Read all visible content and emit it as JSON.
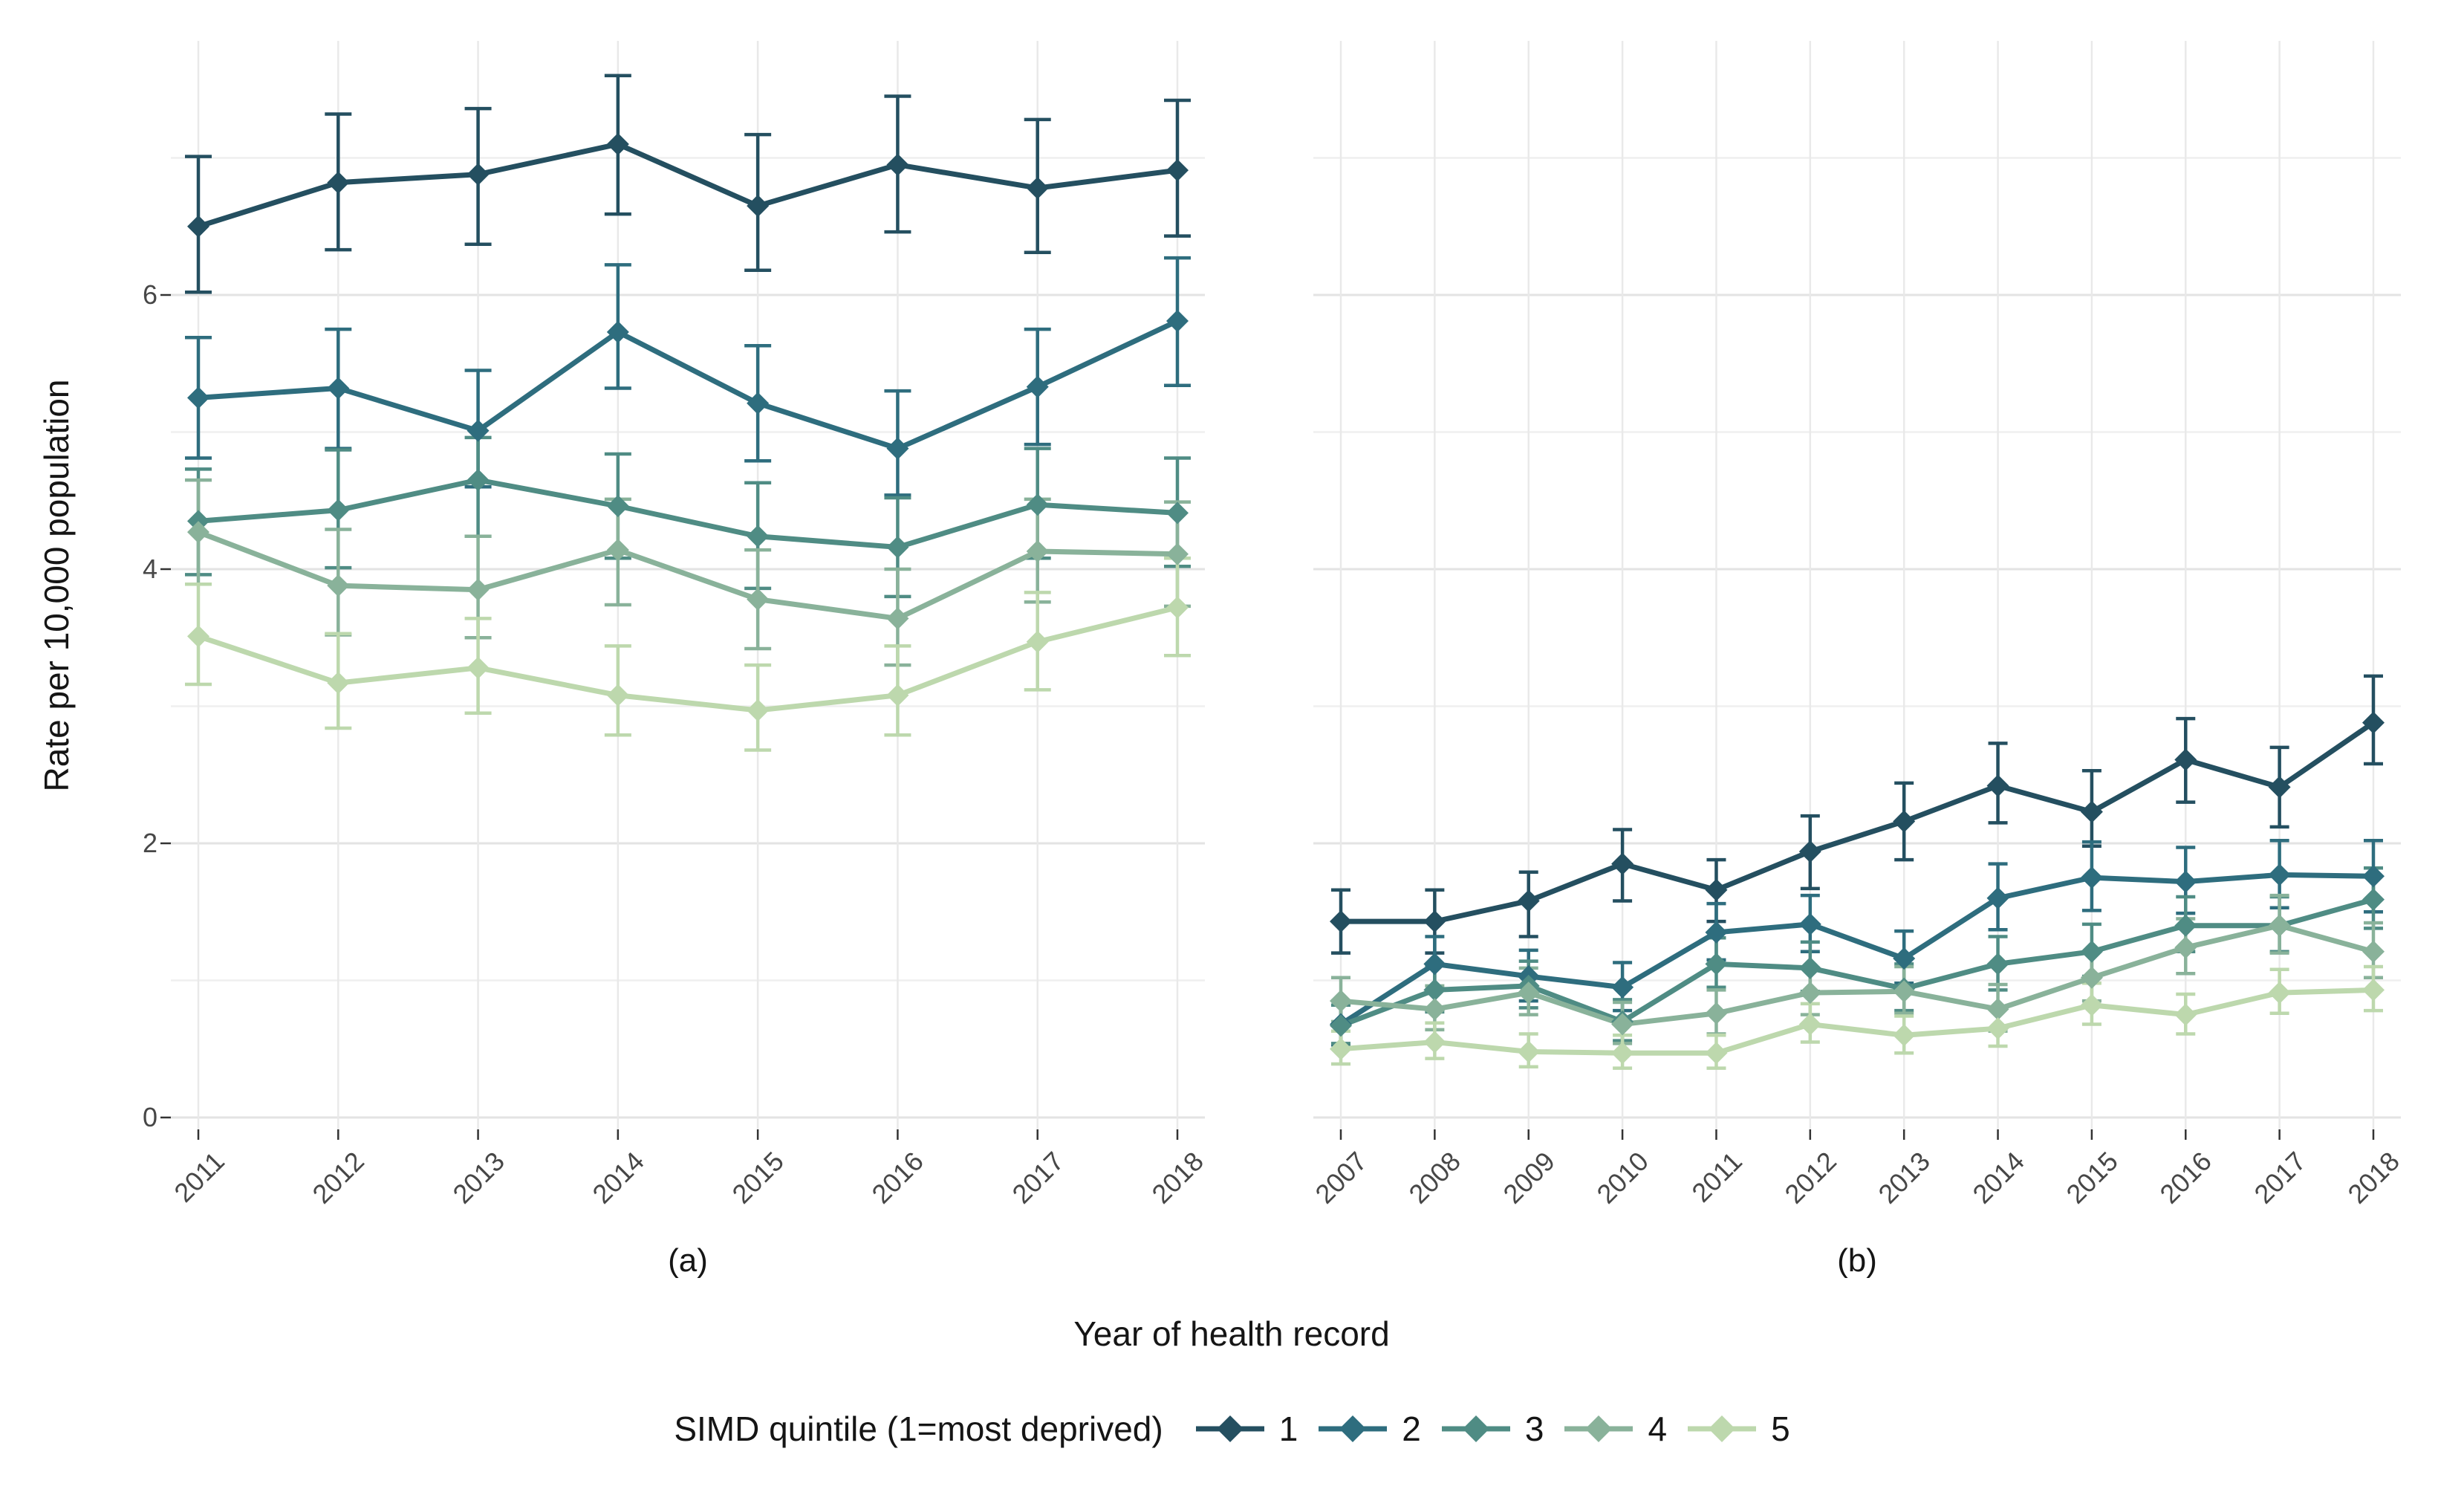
{
  "figure": {
    "y_axis_title": "Rate per 10,000 population",
    "x_axis_title": "Year of health record",
    "legend_title": "SIMD quintile (1=most deprived)",
    "legend_items": [
      {
        "label": "1",
        "color": "#244f60"
      },
      {
        "label": "2",
        "color": "#2e6d7e"
      },
      {
        "label": "3",
        "color": "#4f8c84"
      },
      {
        "label": "4",
        "color": "#89b29a"
      },
      {
        "label": "5",
        "color": "#bdd8ad"
      }
    ],
    "colors": {
      "grid_major": "#e3e3e3",
      "grid_minor": "#efefef",
      "grid_vertical": "#e9e9e9",
      "tick_mark": "#333333",
      "tick_text": "#474747",
      "background": "#ffffff"
    }
  },
  "chart_data": [
    {
      "type": "line",
      "title": "(a)",
      "xlabel": "Year of health record",
      "ylabel": "Rate per 10,000 population",
      "ylim": [
        0,
        7.95
      ],
      "y_major_ticks": [
        0,
        2,
        4,
        6
      ],
      "y_minor_ticks": [
        1,
        3,
        5,
        7
      ],
      "grid": true,
      "legend_position": "bottom",
      "marker": "diamond",
      "error_bars": true,
      "categories": [
        "2011",
        "2012",
        "2013",
        "2014",
        "2015",
        "2016",
        "2017",
        "2018"
      ],
      "series": [
        {
          "name": "1",
          "color": "#244f60",
          "values": [
            6.5,
            6.82,
            6.88,
            7.1,
            6.65,
            6.95,
            6.78,
            6.91
          ],
          "lo": [
            6.02,
            6.33,
            6.37,
            6.59,
            6.18,
            6.46,
            6.31,
            6.43
          ],
          "hi": [
            7.01,
            7.32,
            7.36,
            7.6,
            7.17,
            7.45,
            7.28,
            7.42
          ]
        },
        {
          "name": "2",
          "color": "#2e6d7e",
          "values": [
            5.25,
            5.32,
            5.01,
            5.73,
            5.21,
            4.88,
            5.33,
            5.81
          ],
          "lo": [
            4.81,
            4.88,
            4.6,
            5.32,
            4.79,
            4.54,
            4.91,
            5.34
          ],
          "hi": [
            5.69,
            5.75,
            5.45,
            6.22,
            5.63,
            5.3,
            5.75,
            6.27
          ]
        },
        {
          "name": "3",
          "color": "#4f8c84",
          "values": [
            4.35,
            4.43,
            4.65,
            4.46,
            4.24,
            4.16,
            4.47,
            4.41
          ],
          "lo": [
            3.96,
            4.01,
            4.24,
            4.08,
            3.86,
            3.8,
            4.08,
            4.02
          ],
          "hi": [
            4.73,
            4.87,
            4.96,
            4.84,
            4.63,
            4.52,
            4.88,
            4.81
          ]
        },
        {
          "name": "4",
          "color": "#89b29a",
          "values": [
            4.27,
            3.88,
            3.85,
            4.14,
            3.78,
            3.64,
            4.13,
            4.11
          ],
          "lo": [
            3.89,
            3.52,
            3.5,
            3.74,
            3.42,
            3.3,
            3.76,
            3.73
          ],
          "hi": [
            4.65,
            4.29,
            4.24,
            4.51,
            4.14,
            4.0,
            4.51,
            4.49
          ]
        },
        {
          "name": "5",
          "color": "#bdd8ad",
          "values": [
            3.51,
            3.17,
            3.28,
            3.08,
            2.97,
            3.08,
            3.47,
            3.72
          ],
          "lo": [
            3.16,
            2.84,
            2.95,
            2.79,
            2.68,
            2.79,
            3.12,
            3.37
          ],
          "hi": [
            3.89,
            3.53,
            3.64,
            3.44,
            3.3,
            3.44,
            3.83,
            4.08
          ]
        }
      ]
    },
    {
      "type": "line",
      "title": "(b)",
      "xlabel": "Year of health record",
      "ylabel": "Rate per 10,000 population",
      "ylim": [
        0,
        7.95
      ],
      "y_major_ticks": [
        0,
        2,
        4,
        6
      ],
      "y_minor_ticks": [
        1,
        3,
        5,
        7
      ],
      "grid": true,
      "legend_position": "bottom",
      "marker": "diamond",
      "error_bars": true,
      "categories": [
        "2007",
        "2008",
        "2009",
        "2010",
        "2011",
        "2012",
        "2013",
        "2014",
        "2015",
        "2016",
        "2017",
        "2018"
      ],
      "series": [
        {
          "name": "1",
          "color": "#244f60",
          "values": [
            1.43,
            1.43,
            1.58,
            1.85,
            1.66,
            1.94,
            2.16,
            2.42,
            2.23,
            2.61,
            2.41,
            2.88
          ],
          "lo": [
            1.2,
            1.2,
            1.32,
            1.58,
            1.43,
            1.67,
            1.88,
            2.15,
            1.98,
            2.3,
            2.12,
            2.58
          ],
          "hi": [
            1.66,
            1.66,
            1.79,
            2.1,
            1.88,
            2.2,
            2.44,
            2.73,
            2.53,
            2.91,
            2.7,
            3.22
          ]
        },
        {
          "name": "2",
          "color": "#2e6d7e",
          "values": [
            0.68,
            1.12,
            1.03,
            0.95,
            1.35,
            1.41,
            1.16,
            1.6,
            1.75,
            1.72,
            1.77,
            1.76
          ],
          "lo": [
            0.53,
            0.93,
            0.85,
            0.78,
            1.15,
            1.21,
            0.98,
            1.37,
            1.51,
            1.49,
            1.53,
            1.5
          ],
          "hi": [
            0.85,
            1.32,
            1.22,
            1.13,
            1.56,
            1.62,
            1.36,
            1.85,
            2.01,
            1.97,
            2.02,
            2.02
          ]
        },
        {
          "name": "3",
          "color": "#4f8c84",
          "values": [
            0.67,
            0.93,
            0.96,
            0.7,
            1.12,
            1.09,
            0.94,
            1.12,
            1.21,
            1.4,
            1.4,
            1.59
          ],
          "lo": [
            0.54,
            0.77,
            0.8,
            0.56,
            0.95,
            0.92,
            0.78,
            0.93,
            1.03,
            1.21,
            1.21,
            1.38
          ],
          "hi": [
            0.82,
            1.11,
            1.14,
            0.86,
            1.31,
            1.28,
            1.12,
            1.32,
            1.41,
            1.61,
            1.61,
            1.82
          ]
        },
        {
          "name": "4",
          "color": "#89b29a",
          "values": [
            0.85,
            0.79,
            0.91,
            0.68,
            0.76,
            0.91,
            0.92,
            0.79,
            1.02,
            1.24,
            1.4,
            1.21
          ],
          "lo": [
            0.7,
            0.64,
            0.75,
            0.54,
            0.61,
            0.75,
            0.76,
            0.63,
            0.85,
            1.05,
            1.2,
            1.02
          ],
          "hi": [
            1.02,
            0.96,
            1.09,
            0.84,
            0.93,
            1.09,
            1.1,
            0.97,
            1.21,
            1.45,
            1.62,
            1.42
          ]
        },
        {
          "name": "5",
          "color": "#bdd8ad",
          "values": [
            0.5,
            0.55,
            0.48,
            0.47,
            0.47,
            0.68,
            0.6,
            0.65,
            0.82,
            0.75,
            0.91,
            0.93
          ],
          "lo": [
            0.39,
            0.43,
            0.37,
            0.36,
            0.36,
            0.55,
            0.47,
            0.52,
            0.68,
            0.61,
            0.76,
            0.78
          ],
          "hi": [
            0.63,
            0.69,
            0.61,
            0.6,
            0.6,
            0.83,
            0.74,
            0.8,
            0.98,
            0.9,
            1.08,
            1.1
          ]
        }
      ]
    }
  ]
}
